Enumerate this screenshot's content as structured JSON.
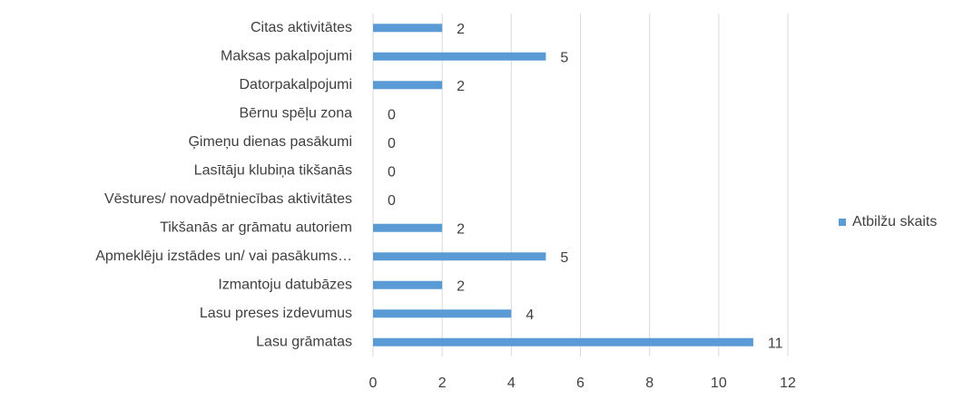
{
  "chart_data": {
    "type": "bar",
    "orientation": "horizontal",
    "categories": [
      "Citas aktivitātes",
      "Maksas pakalpojumi",
      "Datorpakalpojumi",
      "Bērnu spēļu zona",
      "Ģimeņu dienas pasākumi",
      "Lasītāju klubiņa tikšanās",
      "Vēstures/ novadpētniecības aktivitātes",
      "Tikšanās ar grāmatu autoriem",
      "Apmeklēju izstādes un/ vai pasākums…",
      "Izmantoju datubāzes",
      "Lasu preses izdevumus",
      "Lasu grāmatas"
    ],
    "series": [
      {
        "name": "Atbilžu skaits",
        "color": "#5b9bd5",
        "values": [
          2,
          5,
          2,
          0,
          0,
          0,
          0,
          2,
          5,
          2,
          4,
          11
        ]
      }
    ],
    "xlim": [
      0,
      12
    ],
    "xticks": [
      0,
      2,
      4,
      6,
      8,
      10,
      12
    ],
    "grid": true,
    "legend": "right"
  }
}
